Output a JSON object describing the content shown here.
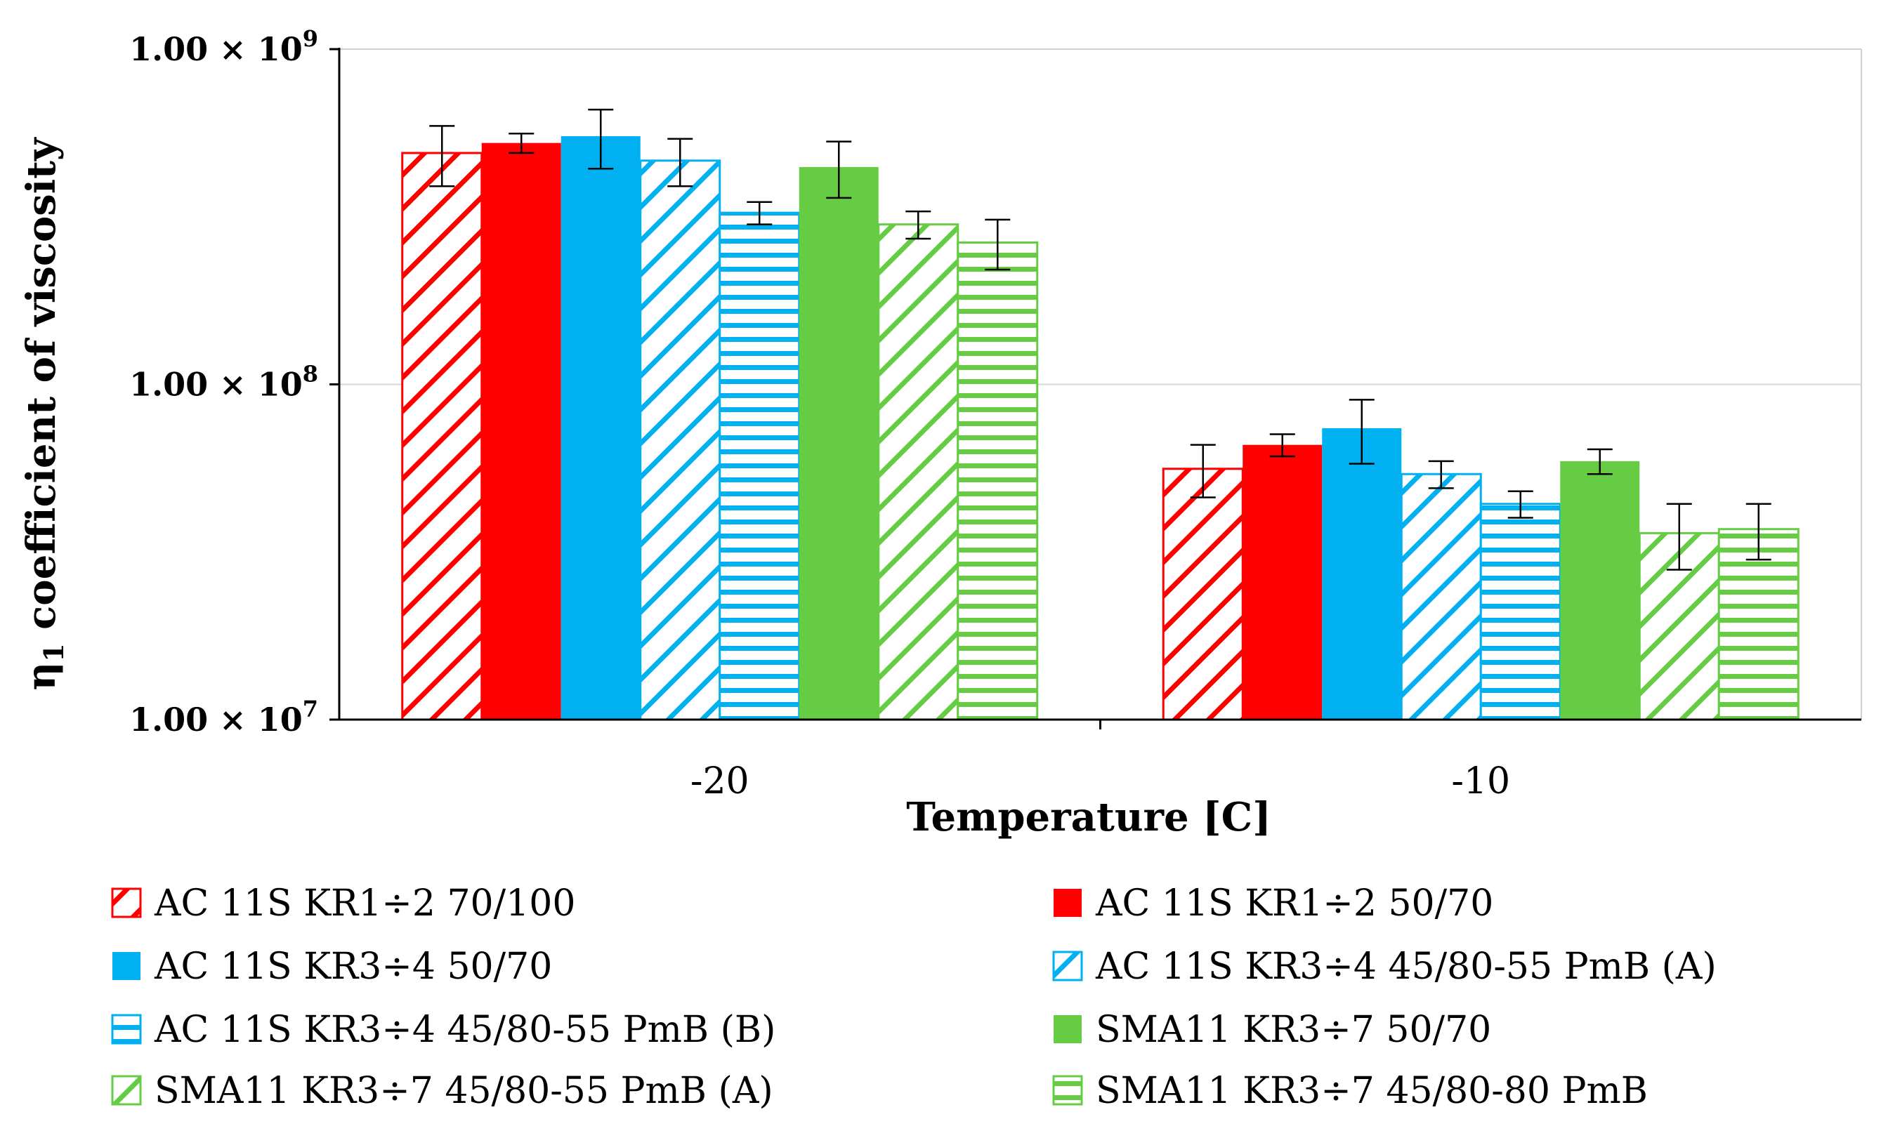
{
  "chart_data": {
    "type": "bar",
    "scale": "log",
    "title": "",
    "xlabel": "Temperature [C]",
    "ylabel_symbol": "η",
    "ylabel_subscript": "1",
    "ylabel_text": "coefficient of viscosity",
    "ylim": [
      10000000,
      1000000000
    ],
    "ytick_values": [
      1000000000,
      100000000,
      10000000
    ],
    "yticks": [
      {
        "mantissa": "1.00",
        "times": "×",
        "base": "10",
        "exp": "9"
      },
      {
        "mantissa": "1.00",
        "times": "×",
        "base": "10",
        "exp": "8"
      },
      {
        "mantissa": "1.00",
        "times": "×",
        "base": "10",
        "exp": "7"
      }
    ],
    "categories": [
      "-20",
      "-10"
    ],
    "gridlines": "major-horizontal",
    "legend_position": "bottom",
    "series": [
      {
        "name": "AC 11S KR1÷2 70/100",
        "color": "#ff0000",
        "pattern": "diagonal",
        "values": [
          490000000,
          56000000
        ],
        "err": [
          100000000,
          10000000
        ]
      },
      {
        "name": "AC 11S KR1÷2 50/70",
        "color": "#ff0000",
        "pattern": "solid",
        "values": [
          525000000,
          66000000
        ],
        "err": [
          35000000,
          5000000
        ]
      },
      {
        "name": "AC 11S KR3÷4 50/70",
        "color": "#00b0f0",
        "pattern": "solid",
        "values": [
          550000000,
          74000000
        ],
        "err": [
          110000000,
          16000000
        ]
      },
      {
        "name": "AC 11S KR3÷4 45/80-55 PmB (A)",
        "color": "#00b0f0",
        "pattern": "diagonal",
        "values": [
          465000000,
          54000000
        ],
        "err": [
          75000000,
          5000000
        ]
      },
      {
        "name": "AC 11S KR3÷4 45/80-55 PmB (B)",
        "color": "#00b0f0",
        "pattern": "horizontal",
        "values": [
          325000000,
          44000000
        ],
        "err": [
          25000000,
          4000000
        ]
      },
      {
        "name": "SMA11 KR3÷7 50/70",
        "color": "#66cc44",
        "pattern": "solid",
        "values": [
          445000000,
          59000000
        ],
        "err": [
          85000000,
          5000000
        ]
      },
      {
        "name": "SMA11 KR3÷7 45/80-55 PmB (A)",
        "color": "#66cc44",
        "pattern": "diagonal",
        "values": [
          300000000,
          36000000
        ],
        "err": [
          28000000,
          8000000
        ]
      },
      {
        "name": "SMA11 KR3÷7 45/80-80 PmB",
        "color": "#66cc44",
        "pattern": "horizontal",
        "values": [
          265000000,
          37000000
        ],
        "err": [
          45000000,
          7000000
        ]
      }
    ]
  }
}
